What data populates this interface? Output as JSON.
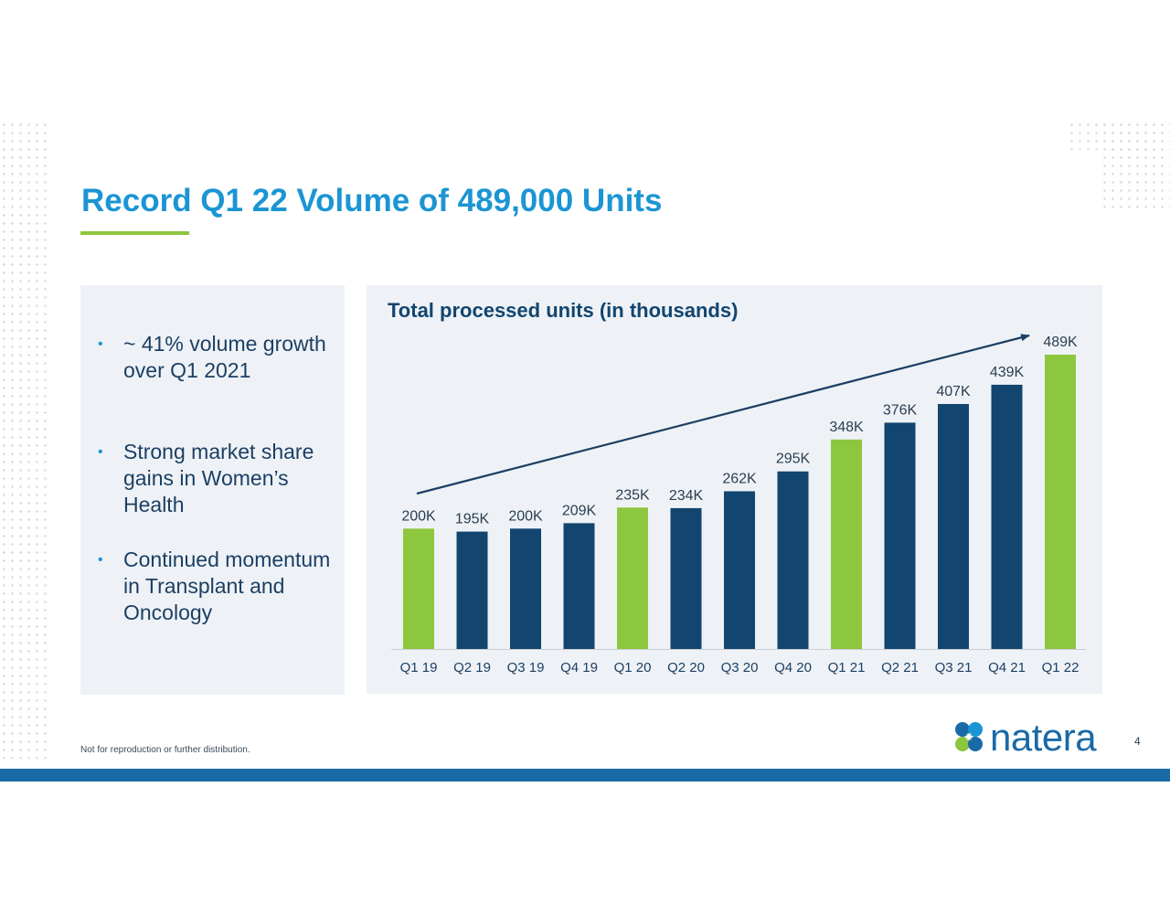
{
  "slide": {
    "title": "Record Q1 22 Volume of 489,000 Units",
    "footnote": "Not for reproduction or further distribution.",
    "page_number": "4",
    "brand": "natera"
  },
  "bullets": [
    {
      "text": "~ 41% volume growth over Q1 2021"
    },
    {
      "text": "Strong market share gains in Women’s Health"
    },
    {
      "text": "Continued momentum in Transplant and Oncology"
    }
  ],
  "colors": {
    "title_blue": "#1b95d3",
    "navy": "#12456f",
    "green": "#8dc63f",
    "panel": "#eef2f6"
  },
  "chart_data": {
    "type": "bar",
    "title": "Total processed units (in thousands)",
    "categories": [
      "Q1 19",
      "Q2 19",
      "Q3 19",
      "Q4 19",
      "Q1 20",
      "Q2 20",
      "Q3 20",
      "Q4 20",
      "Q1 21",
      "Q2 21",
      "Q3 21",
      "Q4 21",
      "Q1 22"
    ],
    "values": [
      200,
      195,
      200,
      209,
      235,
      234,
      262,
      295,
      348,
      376,
      407,
      439,
      489
    ],
    "labels": [
      "200K",
      "195K",
      "200K",
      "209K",
      "235K",
      "234K",
      "262K",
      "295K",
      "348K",
      "376K",
      "407K",
      "439K",
      "489K"
    ],
    "highlighted": [
      "Q1 19",
      "Q1 20",
      "Q1 21",
      "Q1 22"
    ],
    "ylim": [
      0,
      489
    ],
    "trend_arrow": true,
    "xlabel": "",
    "ylabel": ""
  }
}
